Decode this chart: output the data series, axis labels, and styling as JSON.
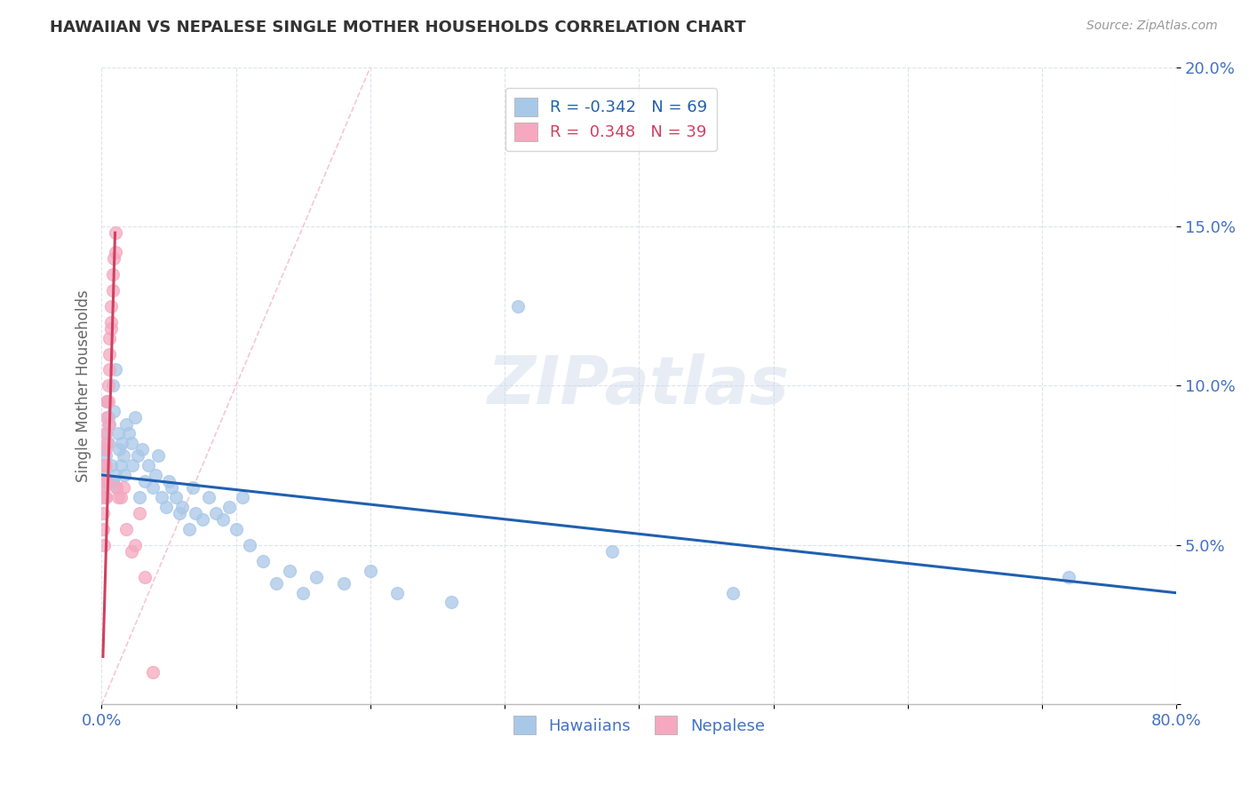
{
  "title": "HAWAIIAN VS NEPALESE SINGLE MOTHER HOUSEHOLDS CORRELATION CHART",
  "source": "Source: ZipAtlas.com",
  "ylabel_label": "Single Mother Households",
  "xlim": [
    0.0,
    0.8
  ],
  "ylim": [
    0.0,
    0.2
  ],
  "xtick_vals": [
    0.0,
    0.1,
    0.2,
    0.3,
    0.4,
    0.5,
    0.6,
    0.7,
    0.8
  ],
  "xtick_labels": [
    "0.0%",
    "",
    "",
    "",
    "",
    "",
    "",
    "",
    "80.0%"
  ],
  "ytick_vals": [
    0.0,
    0.05,
    0.1,
    0.15,
    0.2
  ],
  "ytick_labels": [
    "",
    "5.0%",
    "10.0%",
    "15.0%",
    "20.0%"
  ],
  "legend_r_blue": "-0.342",
  "legend_n_blue": "69",
  "legend_r_pink": "0.348",
  "legend_n_pink": "39",
  "blue_color": "#a8c8e8",
  "pink_color": "#f5a8c0",
  "line_blue_color": "#2060b0",
  "line_pink_color": "#d04060",
  "diagonal_color": "#f5c0d0",
  "watermark": "ZIPatlas",
  "background_color": "#ffffff",
  "tick_color": "#4472c4",
  "hawaiians_x": [
    0.001,
    0.001,
    0.002,
    0.002,
    0.003,
    0.003,
    0.003,
    0.004,
    0.004,
    0.005,
    0.005,
    0.006,
    0.007,
    0.008,
    0.008,
    0.009,
    0.01,
    0.01,
    0.011,
    0.012,
    0.013,
    0.014,
    0.015,
    0.016,
    0.017,
    0.018,
    0.02,
    0.022,
    0.023,
    0.025,
    0.027,
    0.028,
    0.03,
    0.032,
    0.035,
    0.038,
    0.04,
    0.042,
    0.045,
    0.048,
    0.05,
    0.052,
    0.055,
    0.058,
    0.06,
    0.065,
    0.068,
    0.07,
    0.075,
    0.08,
    0.085,
    0.09,
    0.095,
    0.1,
    0.105,
    0.11,
    0.12,
    0.13,
    0.14,
    0.15,
    0.16,
    0.18,
    0.2,
    0.22,
    0.26,
    0.31,
    0.38,
    0.47,
    0.72
  ],
  "hawaiians_y": [
    0.075,
    0.068,
    0.08,
    0.072,
    0.085,
    0.065,
    0.078,
    0.07,
    0.095,
    0.082,
    0.09,
    0.088,
    0.075,
    0.1,
    0.07,
    0.092,
    0.105,
    0.072,
    0.068,
    0.085,
    0.08,
    0.075,
    0.082,
    0.078,
    0.072,
    0.088,
    0.085,
    0.082,
    0.075,
    0.09,
    0.078,
    0.065,
    0.08,
    0.07,
    0.075,
    0.068,
    0.072,
    0.078,
    0.065,
    0.062,
    0.07,
    0.068,
    0.065,
    0.06,
    0.062,
    0.055,
    0.068,
    0.06,
    0.058,
    0.065,
    0.06,
    0.058,
    0.062,
    0.055,
    0.065,
    0.05,
    0.045,
    0.038,
    0.042,
    0.035,
    0.04,
    0.038,
    0.042,
    0.035,
    0.032,
    0.125,
    0.048,
    0.035,
    0.04
  ],
  "nepalese_x": [
    0.001,
    0.001,
    0.001,
    0.002,
    0.002,
    0.002,
    0.002,
    0.003,
    0.003,
    0.003,
    0.003,
    0.004,
    0.004,
    0.004,
    0.004,
    0.005,
    0.005,
    0.005,
    0.006,
    0.006,
    0.006,
    0.007,
    0.007,
    0.007,
    0.008,
    0.008,
    0.009,
    0.01,
    0.01,
    0.011,
    0.012,
    0.014,
    0.016,
    0.018,
    0.022,
    0.025,
    0.028,
    0.032,
    0.038
  ],
  "nepalese_y": [
    0.06,
    0.065,
    0.055,
    0.07,
    0.075,
    0.068,
    0.05,
    0.08,
    0.085,
    0.075,
    0.065,
    0.09,
    0.095,
    0.082,
    0.07,
    0.1,
    0.095,
    0.088,
    0.11,
    0.115,
    0.105,
    0.125,
    0.12,
    0.118,
    0.13,
    0.135,
    0.14,
    0.142,
    0.148,
    0.068,
    0.065,
    0.065,
    0.068,
    0.055,
    0.048,
    0.05,
    0.06,
    0.04,
    0.01
  ],
  "blue_line_x0": 0.0,
  "blue_line_y0": 0.072,
  "blue_line_x1": 0.8,
  "blue_line_y1": 0.035,
  "pink_line_x0": 0.001,
  "pink_line_y0": 0.015,
  "pink_line_x1": 0.01,
  "pink_line_y1": 0.148
}
